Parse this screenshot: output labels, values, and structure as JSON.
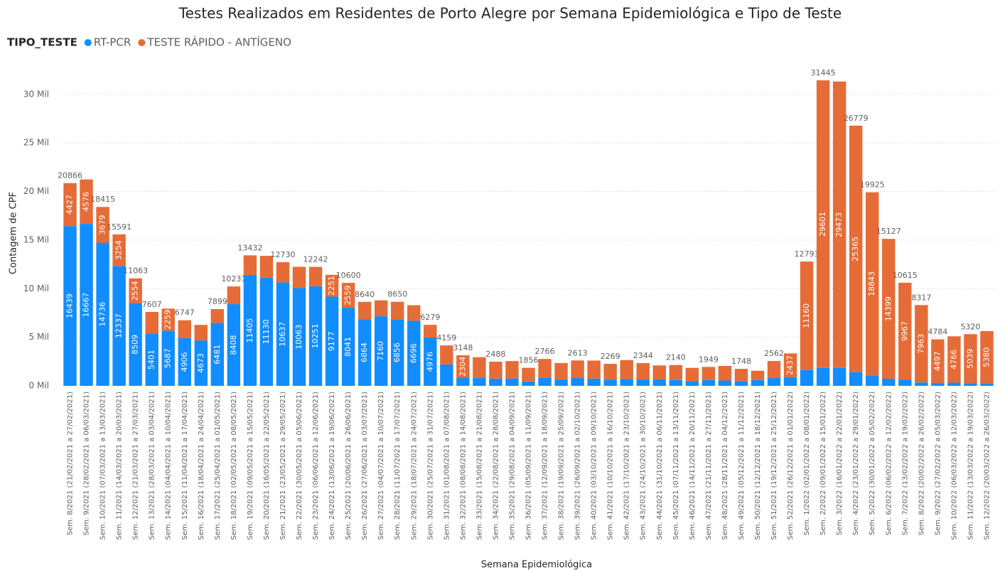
{
  "chart_data": {
    "type": "stacked_bar",
    "title": "Testes Realizados em Residentes de Porto Alegre por Semana Epidemiológica e Tipo de Teste",
    "legend_title": "TIPO_TESTE",
    "y_label": "Contagem de CPF",
    "x_label": "Semana Epidemiológica",
    "ylim": [
      0,
      32400
    ],
    "yticks": [
      {
        "value": 0,
        "label": "0 Mil"
      },
      {
        "value": 5000,
        "label": "5 Mil"
      },
      {
        "value": 10000,
        "label": "10 Mil"
      },
      {
        "value": 15000,
        "label": "15 Mil"
      },
      {
        "value": 20000,
        "label": "20 Mil"
      },
      {
        "value": 25000,
        "label": "25 Mil"
      },
      {
        "value": 30000,
        "label": "30 Mil"
      }
    ],
    "grid": true,
    "categories": [
      "Sem. 8/2021 (21/02/2021 a 27/02/2021)",
      "Sem. 9/2021 (28/02/2021 a 06/03/2021)",
      "Sem. 10/2021 (07/03/2021 a 13/03/2021)",
      "Sem. 11/2021 (14/03/2021 a 20/03/2021)",
      "Sem. 12/2021 (21/03/2021 a 27/03/2021)",
      "Sem. 13/2021 (28/03/2021 a 03/04/2021)",
      "Sem. 14/2021 (04/04/2021 a 10/04/2021)",
      "Sem. 15/2021 (11/04/2021 a 17/04/2021)",
      "Sem. 16/2021 (18/04/2021 a 24/04/2021)",
      "Sem. 17/2021 (25/04/2021 a 01/05/2021)",
      "Sem. 18/2021 (02/05/2021 a 08/05/2021)",
      "Sem. 19/2021 (09/05/2021 a 15/05/2021)",
      "Sem. 20/2021 (16/05/2021 a 22/05/2021)",
      "Sem. 21/2021 (23/05/2021 a 29/05/2021)",
      "Sem. 22/2021 (30/05/2021 a 05/06/2021)",
      "Sem. 23/2021 (06/06/2021 a 12/06/2021)",
      "Sem. 24/2021 (13/06/2021 a 19/06/2021)",
      "Sem. 25/2021 (20/06/2021 a 26/06/2021)",
      "Sem. 26/2021 (27/06/2021 a 03/07/2021)",
      "Sem. 27/2021 (04/07/2021 a 10/07/2021)",
      "Sem. 28/2021 (11/07/2021 a 17/07/2021)",
      "Sem. 29/2021 (18/07/2021 a 24/07/2021)",
      "Sem. 30/2021 (25/07/2021 a 31/07/2021)",
      "Sem. 31/2021 (01/08/2021 a 07/08/2021)",
      "Sem. 32/2021 (08/08/2021 a 14/08/2021)",
      "Sem. 33/2021 (15/08/2021 a 21/08/2021)",
      "Sem. 34/2021 (22/08/2021 a 28/08/2021)",
      "Sem. 35/2021 (29/08/2021 a 04/09/2021)",
      "Sem. 36/2021 (05/09/2021 a 11/09/2021)",
      "Sem. 37/2021 (12/09/2021 a 18/09/2021)",
      "Sem. 38/2021 (19/09/2021 a 25/09/2021)",
      "Sem. 39/2021 (26/09/2021 a 02/10/2021)",
      "Sem. 40/2021 (03/10/2021 a 09/10/2021)",
      "Sem. 41/2021 (10/10/2021 a 16/10/2021)",
      "Sem. 42/2021 (17/10/2021 a 23/10/2021)",
      "Sem. 43/2021 (24/10/2021 a 30/10/2021)",
      "Sem. 44/2021 (31/10/2021 a 06/11/2021)",
      "Sem. 45/2021 (07/11/2021 a 13/11/2021)",
      "Sem. 46/2021 (14/11/2021 a 20/11/2021)",
      "Sem. 47/2021 (21/11/2021 a 27/11/2021)",
      "Sem. 48/2021 (28/11/2021 a 04/12/2021)",
      "Sem. 49/2021 (05/12/2021 a 11/12/2021)",
      "Sem. 50/2021 (12/12/2021 a 18/12/2021)",
      "Sem. 51/2021 (19/12/2021 a 25/12/2021)",
      "Sem. 52/2021 (26/12/2021 a 01/01/2022)",
      "Sem. 1/2022 (02/01/2022 a 08/01/2022)",
      "Sem. 2/2022 (09/01/2022 a 15/01/2022)",
      "Sem. 3/2022 (16/01/2022 a 22/01/2022)",
      "Sem. 4/2022 (23/01/2022 a 29/01/2022)",
      "Sem. 5/2022 (30/01/2022 a 05/02/2022)",
      "Sem. 6/2022 (06/02/2022 a 12/02/2022)",
      "Sem. 7/2022 (13/02/2022 a 19/02/2022)",
      "Sem. 8/2022 (20/02/2022 a 26/02/2022)",
      "Sem. 9/2022 (27/02/2022 a 05/03/2022)",
      "Sem. 10/2022 (06/03/2022 a 12/03/2022)",
      "Sem. 11/2022 (13/03/2022 a 19/03/2022)",
      "Sem. 12/2022 (20/03/2022 a 26/03/2022)"
    ],
    "series": [
      {
        "name": "RT-PCR",
        "color": "#118dff",
        "values": [
          16439,
          16667,
          14736,
          12337,
          8509,
          5401,
          5687,
          4906,
          4673,
          6481,
          8408,
          11405,
          11130,
          10637,
          10063,
          10251,
          9177,
          8041,
          6864,
          7160,
          6856,
          6696,
          4976,
          2200,
          844,
          800,
          750,
          750,
          450,
          850,
          650,
          800,
          750,
          650,
          700,
          650,
          650,
          600,
          500,
          600,
          550,
          500,
          600,
          800,
          900,
          1633,
          1844,
          1850,
          1414,
          1082,
          728,
          648,
          354,
          287,
          330,
          281,
          250
        ],
        "data_labels": [
          16439,
          16667,
          14736,
          12337,
          8509,
          5401,
          5687,
          4906,
          4673,
          6481,
          8408,
          11405,
          11130,
          10637,
          10063,
          10251,
          9177,
          8041,
          6864,
          7160,
          6856,
          6696,
          4976,
          null,
          null,
          null,
          null,
          null,
          null,
          null,
          null,
          null,
          null,
          null,
          null,
          null,
          null,
          null,
          null,
          null,
          null,
          null,
          null,
          null,
          null,
          null,
          null,
          null,
          null,
          null,
          null,
          null,
          null,
          null,
          null,
          null,
          null
        ]
      },
      {
        "name": "TESTE RÁPIDO - ANTÍGENO",
        "color": "#e66c37",
        "values": [
          4427,
          4576,
          3679,
          3254,
          2554,
          2206,
          2259,
          1841,
          1600,
          1418,
          1823,
          2027,
          2250,
          2093,
          2190,
          1991,
          2251,
          2559,
          1776,
          1640,
          1794,
          1600,
          1303,
          1959,
          2304,
          2150,
          1738,
          1800,
          1406,
          1916,
          1700,
          1813,
          1850,
          1619,
          1950,
          1694,
          1450,
          1540,
          1350,
          1349,
          1500,
          1248,
          950,
          1762,
          2437,
          11160,
          29601,
          29473,
          25365,
          18843,
          14399,
          9967,
          7963,
          4497,
          4766,
          5039,
          5380
        ],
        "data_labels": [
          4427,
          4576,
          3679,
          3254,
          2554,
          null,
          2259,
          null,
          null,
          null,
          null,
          null,
          null,
          null,
          null,
          null,
          2251,
          2559,
          null,
          null,
          null,
          null,
          null,
          null,
          2304,
          null,
          null,
          null,
          null,
          null,
          null,
          null,
          null,
          null,
          null,
          null,
          null,
          null,
          null,
          null,
          null,
          null,
          null,
          null,
          2437,
          11160,
          29601,
          29473,
          25365,
          18843,
          14399,
          9967,
          7963,
          4497,
          4766,
          5039,
          5380
        ]
      }
    ],
    "total_labels": [
      20866,
      null,
      18415,
      15591,
      11063,
      7607,
      null,
      6747,
      null,
      7899,
      10231,
      13432,
      null,
      12730,
      null,
      12242,
      null,
      10600,
      8640,
      null,
      8650,
      null,
      6279,
      4159,
      3148,
      null,
      2488,
      null,
      1856,
      2766,
      null,
      2613,
      null,
      2269,
      null,
      2344,
      null,
      2140,
      null,
      1949,
      null,
      1748,
      null,
      2562,
      null,
      12793,
      31445,
      null,
      26779,
      19925,
      15127,
      10615,
      8317,
      4784,
      null,
      5320,
      null
    ]
  }
}
